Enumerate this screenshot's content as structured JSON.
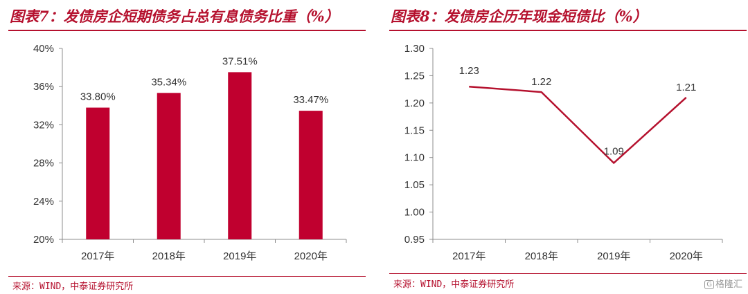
{
  "left": {
    "title": "图表7：发债房企短期债务占总有息债务比重（%）",
    "source": "来源：WIND，中泰证券研究所",
    "chart_data": {
      "type": "bar",
      "categories": [
        "2017年",
        "2018年",
        "2019年",
        "2020年"
      ],
      "values": [
        33.8,
        35.34,
        37.51,
        33.47
      ],
      "value_labels": [
        "33.80%",
        "35.34%",
        "37.51%",
        "33.47%"
      ],
      "ylim": [
        20,
        40
      ],
      "yticks": [
        20,
        24,
        28,
        32,
        36,
        40
      ],
      "ytick_labels": [
        "20%",
        "24%",
        "28%",
        "32%",
        "36%",
        "40%"
      ],
      "color": "#c0002f",
      "grid": false
    }
  },
  "right": {
    "title": "图表8：发债房企历年现金短债比（%）",
    "source": "来源：WIND，中泰证券研究所",
    "chart_data": {
      "type": "line",
      "categories": [
        "2017年",
        "2018年",
        "2019年",
        "2020年"
      ],
      "values": [
        1.23,
        1.22,
        1.09,
        1.21
      ],
      "value_labels": [
        "1.23",
        "1.22",
        "1.09",
        "1.21"
      ],
      "ylim": [
        0.95,
        1.3
      ],
      "yticks": [
        0.95,
        1.0,
        1.05,
        1.1,
        1.15,
        1.2,
        1.25,
        1.3
      ],
      "ytick_labels": [
        "0.95",
        "1.00",
        "1.05",
        "1.10",
        "1.15",
        "1.20",
        "1.25",
        "1.30"
      ],
      "color": "#b5112e",
      "grid": false
    }
  },
  "watermark": {
    "icon": "logo-icon",
    "text": "格隆汇"
  }
}
